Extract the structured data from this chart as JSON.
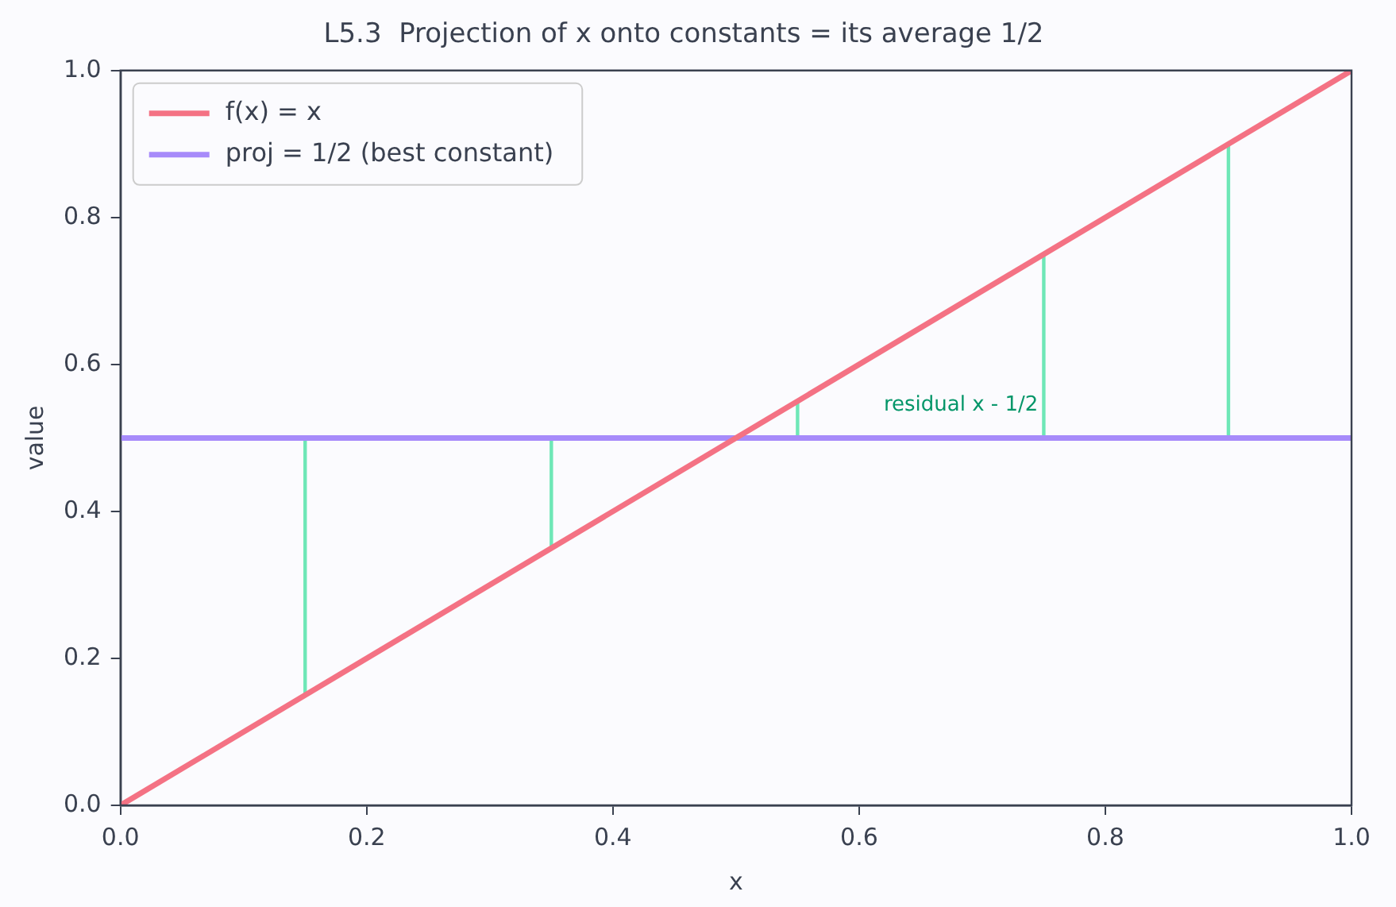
{
  "chart_data": {
    "type": "line",
    "title": "L5.3  Projection of x onto constants = its average 1/2",
    "xlabel": "x",
    "ylabel": "value",
    "xlim": [
      0,
      1
    ],
    "ylim": [
      0,
      1
    ],
    "xticks": [
      {
        "value": 0,
        "label": "0.0"
      },
      {
        "value": 0.2,
        "label": "0.2"
      },
      {
        "value": 0.4,
        "label": "0.4"
      },
      {
        "value": 0.6,
        "label": "0.6"
      },
      {
        "value": 0.8,
        "label": "0.8"
      },
      {
        "value": 1,
        "label": "1.0"
      }
    ],
    "yticks": [
      {
        "value": 0,
        "label": "0.0"
      },
      {
        "value": 0.2,
        "label": "0.2"
      },
      {
        "value": 0.4,
        "label": "0.4"
      },
      {
        "value": 0.6,
        "label": "0.6"
      },
      {
        "value": 0.8,
        "label": "0.8"
      },
      {
        "value": 1,
        "label": "1.0"
      }
    ],
    "grid": false,
    "legend": "top left",
    "marker": "none",
    "line_style": "solid",
    "series": [
      {
        "name": "f(x) = x",
        "color": "#f47284",
        "x": [
          0,
          1
        ],
        "values": [
          0,
          1
        ]
      },
      {
        "name": "proj = 1/2 (best constant)",
        "color": "#a78bfa",
        "x": [
          0,
          1
        ],
        "values": [
          0.5,
          0.5
        ]
      },
      {
        "color": "#6ee7b7",
        "x": [
          0.15,
          0.15
        ],
        "values": [
          0.15,
          0.5
        ]
      },
      {
        "color": "#6ee7b7",
        "x": [
          0.35,
          0.35
        ],
        "values": [
          0.35,
          0.5
        ]
      },
      {
        "color": "#6ee7b7",
        "x": [
          0.55,
          0.55
        ],
        "values": [
          0.5,
          0.55
        ]
      },
      {
        "color": "#6ee7b7",
        "x": [
          0.75,
          0.75
        ],
        "values": [
          0.5,
          0.75
        ]
      },
      {
        "color": "#6ee7b7",
        "x": [
          0.9,
          0.9
        ],
        "values": [
          0.5,
          0.9
        ]
      }
    ],
    "annotations": [
      "residual x - 1/2"
    ]
  }
}
